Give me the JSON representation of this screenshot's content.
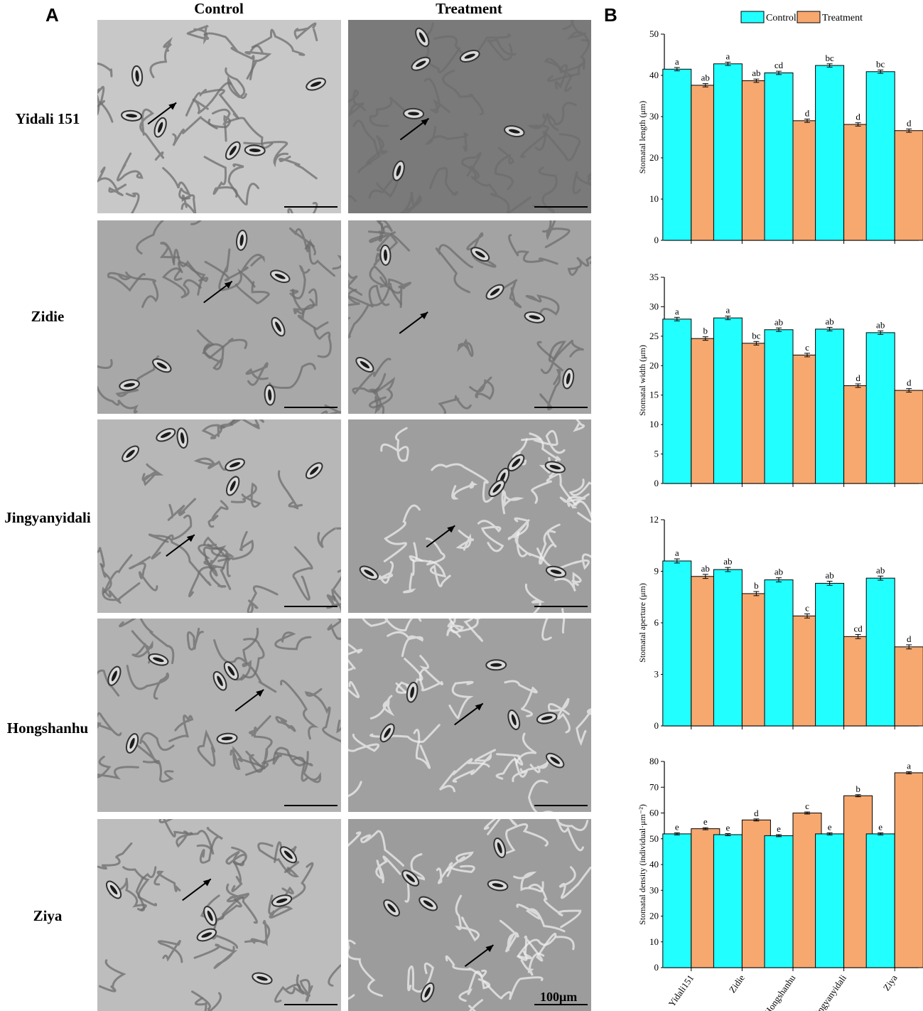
{
  "panel_a": {
    "letter": "A",
    "columns": [
      "Control",
      "Treatment"
    ],
    "rows": [
      "Yidali 151",
      "Zidie",
      "Jingyanyidali",
      "Hongshanhu",
      "Ziya"
    ],
    "scale_label": "100μm"
  },
  "panel_b": {
    "letter": "B",
    "legend": [
      "Control",
      "Treatment"
    ]
  },
  "colors": {
    "control": "#22ffff",
    "treatment": "#f7a86f"
  },
  "chart_data": [
    {
      "type": "bar",
      "ylabel": "Stomatal length (μm)",
      "ylim": [
        0,
        50
      ],
      "yticks": [
        0,
        10,
        20,
        30,
        40,
        50
      ],
      "categories": [
        "Yidali151",
        "Zidie",
        "Hongshanhu",
        "Jingyanyidali",
        "Ziya"
      ],
      "series": [
        {
          "name": "Control",
          "values": [
            41.5,
            42.8,
            40.6,
            42.4,
            40.9
          ],
          "errors": [
            0.4,
            0.4,
            0.4,
            0.4,
            0.4
          ],
          "labels": [
            "a",
            "a",
            "cd",
            "bc",
            "bc"
          ]
        },
        {
          "name": "Treatment",
          "values": [
            37.6,
            38.7,
            29.0,
            28.1,
            26.6
          ],
          "errors": [
            0.4,
            0.4,
            0.4,
            0.4,
            0.4
          ],
          "labels": [
            "ab",
            "ab",
            "d",
            "d",
            "d"
          ]
        }
      ]
    },
    {
      "type": "bar",
      "ylabel": "Stomatal width (μm)",
      "ylim": [
        0,
        35
      ],
      "yticks": [
        0,
        5,
        10,
        15,
        20,
        25,
        30,
        35
      ],
      "categories": [
        "Yidali151",
        "Zidie",
        "Hongshanhu",
        "Jingyanyidali",
        "Ziya"
      ],
      "series": [
        {
          "name": "Control",
          "values": [
            27.9,
            28.1,
            26.1,
            26.2,
            25.6
          ],
          "errors": [
            0.3,
            0.3,
            0.3,
            0.3,
            0.3
          ],
          "labels": [
            "a",
            "a",
            "ab",
            "ab",
            "ab"
          ]
        },
        {
          "name": "Treatment",
          "values": [
            24.6,
            23.8,
            21.8,
            16.6,
            15.8
          ],
          "errors": [
            0.3,
            0.3,
            0.3,
            0.3,
            0.3
          ],
          "labels": [
            "b",
            "bc",
            "c",
            "d",
            "d"
          ]
        }
      ]
    },
    {
      "type": "bar",
      "ylabel": "Stomatal aperture (μm)",
      "ylim": [
        0,
        12
      ],
      "yticks": [
        0,
        3,
        6,
        9,
        12
      ],
      "categories": [
        "Yidali151",
        "Zidie",
        "Hongshanhu",
        "Jingyanyidali",
        "Ziya"
      ],
      "series": [
        {
          "name": "Control",
          "values": [
            9.6,
            9.1,
            8.5,
            8.3,
            8.6
          ],
          "errors": [
            0.12,
            0.12,
            0.12,
            0.12,
            0.12
          ],
          "labels": [
            "a",
            "ab",
            "ab",
            "ab",
            "ab"
          ]
        },
        {
          "name": "Treatment",
          "values": [
            8.7,
            7.7,
            6.4,
            5.2,
            4.6
          ],
          "errors": [
            0.12,
            0.12,
            0.12,
            0.12,
            0.12
          ],
          "labels": [
            "ab",
            "b",
            "c",
            "cd",
            "d"
          ]
        }
      ]
    },
    {
      "type": "bar",
      "ylabel": "Stomatal density (individual·μm⁻²)",
      "ylim": [
        0,
        80
      ],
      "yticks": [
        0,
        10,
        20,
        30,
        40,
        50,
        60,
        70,
        80
      ],
      "categories": [
        "Yidali151",
        "Zidie",
        "Hongshanhu",
        "Jingyanyidali",
        "Ziya"
      ],
      "series": [
        {
          "name": "Control",
          "values": [
            51.9,
            51.6,
            51.2,
            51.9,
            51.9
          ],
          "errors": [
            0.4,
            0.4,
            0.4,
            0.4,
            0.4
          ],
          "labels": [
            "e",
            "e",
            "e",
            "e",
            "e"
          ]
        },
        {
          "name": "Treatment",
          "values": [
            53.9,
            57.3,
            60.0,
            66.7,
            75.6
          ],
          "errors": [
            0.4,
            0.4,
            0.4,
            0.4,
            0.4
          ],
          "labels": [
            "e",
            "d",
            "c",
            "b",
            "a"
          ]
        }
      ]
    }
  ]
}
